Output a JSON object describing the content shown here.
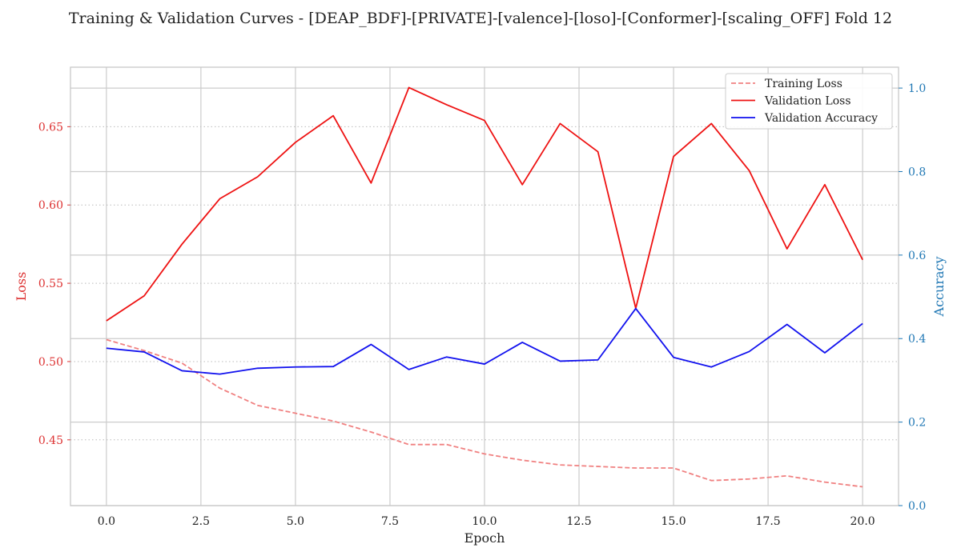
{
  "chart_data": {
    "type": "line",
    "title": "Training & Validation Curves - [DEAP_BDF]-[PRIVATE]-[valence]-[loso]-[Conformer]-[scaling_OFF] Fold 12",
    "xlabel": "Epoch",
    "ylabel_left": "Loss",
    "ylabel_right": "Accuracy",
    "xlim": [
      -0.95,
      20.95
    ],
    "ylim_left": [
      0.408,
      0.688
    ],
    "ylim_right": [
      0.0,
      1.05
    ],
    "x_ticks": [
      0.0,
      2.5,
      5.0,
      7.5,
      10.0,
      12.5,
      15.0,
      17.5,
      20.0
    ],
    "x_tick_labels": [
      "0.0",
      "2.5",
      "5.0",
      "7.5",
      "10.0",
      "12.5",
      "15.0",
      "17.5",
      "20.0"
    ],
    "y_left_ticks": [
      0.45,
      0.5,
      0.55,
      0.6,
      0.65
    ],
    "y_left_tick_labels": [
      "0.45",
      "0.50",
      "0.55",
      "0.60",
      "0.65"
    ],
    "y_right_ticks": [
      0.0,
      0.2,
      0.4,
      0.6,
      0.8,
      1.0
    ],
    "y_right_tick_labels": [
      "0.0",
      "0.2",
      "0.4",
      "0.6",
      "0.8",
      "1.0"
    ],
    "x": [
      0,
      1,
      2,
      3,
      4,
      5,
      6,
      7,
      8,
      9,
      10,
      11,
      12,
      13,
      14,
      15,
      16,
      17,
      18,
      19,
      20
    ],
    "series": [
      {
        "name": "Training Loss",
        "axis": "left",
        "color": "#f08080",
        "style": "dashed",
        "values": [
          0.514,
          0.507,
          0.499,
          0.483,
          0.472,
          0.467,
          0.462,
          0.455,
          0.447,
          0.447,
          0.441,
          0.437,
          0.434,
          0.433,
          0.432,
          0.432,
          0.424,
          0.425,
          0.427,
          0.423,
          0.42
        ]
      },
      {
        "name": "Validation Loss",
        "axis": "left",
        "color": "#ee1111",
        "style": "solid",
        "values": [
          0.526,
          0.542,
          0.575,
          0.604,
          0.618,
          0.64,
          0.657,
          0.614,
          0.675,
          0.664,
          0.654,
          0.613,
          0.652,
          0.634,
          0.534,
          0.631,
          0.652,
          0.622,
          0.572,
          0.613,
          0.565
        ]
      },
      {
        "name": "Validation Accuracy",
        "axis": "right",
        "color": "#1111ee",
        "style": "solid",
        "values": [
          0.377,
          0.368,
          0.323,
          0.315,
          0.329,
          0.332,
          0.333,
          0.386,
          0.326,
          0.356,
          0.339,
          0.391,
          0.346,
          0.349,
          0.472,
          0.355,
          0.332,
          0.369,
          0.434,
          0.366,
          0.436
        ]
      }
    ],
    "legend_position": "top-right",
    "grid": true,
    "colors": {
      "left_axis": "#dd3333",
      "right_axis": "#1f77b4",
      "grid": "#cccccc",
      "spine": "#c8c8c8",
      "text": "#222222"
    }
  }
}
